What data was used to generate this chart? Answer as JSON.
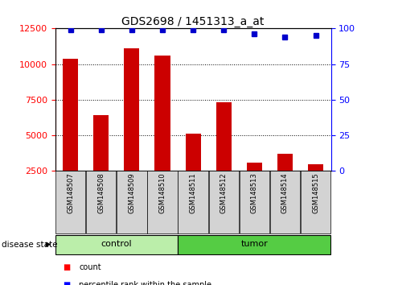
{
  "title": "GDS2698 / 1451313_a_at",
  "samples": [
    "GSM148507",
    "GSM148508",
    "GSM148509",
    "GSM148510",
    "GSM148511",
    "GSM148512",
    "GSM148513",
    "GSM148514",
    "GSM148515"
  ],
  "counts": [
    10400,
    6400,
    11100,
    10600,
    5100,
    7300,
    3100,
    3700,
    3000
  ],
  "percentiles": [
    99,
    99,
    99,
    99,
    99,
    99,
    96,
    94,
    95
  ],
  "groups": [
    {
      "label": "control",
      "start": 0,
      "end": 4,
      "color": "#90EE90"
    },
    {
      "label": "tumor",
      "start": 4,
      "end": 9,
      "color": "#4CBB47"
    }
  ],
  "group_label": "disease state",
  "ylim_left": [
    2500,
    12500
  ],
  "yticks_left": [
    2500,
    5000,
    7500,
    10000,
    12500
  ],
  "ylim_right": [
    0,
    100
  ],
  "yticks_right": [
    0,
    25,
    50,
    75,
    100
  ],
  "bar_color": "#CC0000",
  "dot_color": "#0000CC",
  "bar_width": 0.5,
  "tick_box_color": "#D3D3D3",
  "legend_count_label": "count",
  "legend_pct_label": "percentile rank within the sample",
  "control_color": "#BBEEAA",
  "tumor_color": "#55CC44"
}
